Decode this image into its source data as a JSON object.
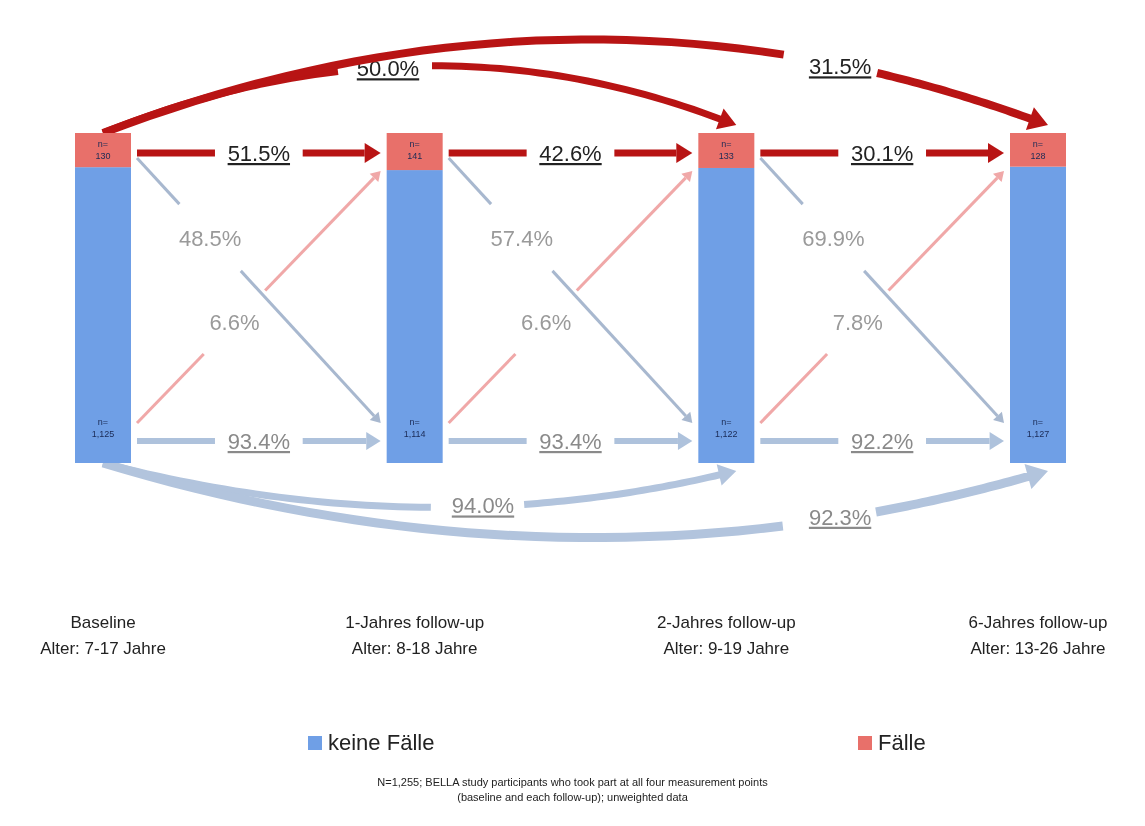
{
  "chart_data": {
    "type": "bar",
    "stacked": true,
    "categories": [
      "Baseline\nAlter: 7-17 Jahre",
      "1-Jahres follow-up\nAlter: 8-18 Jahre",
      "2-Jahres follow-up\nAlter: 9-19 Jahre",
      "6-Jahres follow-up\nAlter: 13-26 Jahre"
    ],
    "series": [
      {
        "name": "keine Fälle",
        "color": "#6f9fe6",
        "values": [
          1125,
          1114,
          1122,
          1127
        ],
        "value_labels": [
          "n=\n1,125",
          "n=\n1,114",
          "n=\n1,122",
          "n=\n1,127"
        ]
      },
      {
        "name": "Fälle",
        "color": "#e8706a",
        "values": [
          130,
          141,
          133,
          128
        ],
        "value_labels": [
          "n=\n130",
          "n=\n141",
          "n=\n133",
          "n=\n128"
        ]
      }
    ],
    "legend": "bottom",
    "annotations": [
      "51.5%",
      "42.6%",
      "30.1%",
      "48.5%",
      "57.4%",
      "69.9%",
      "6.6%",
      "6.6%",
      "7.8%",
      "93.4%",
      "93.4%",
      "92.2%",
      "50.0%",
      "31.5%",
      "94.0%",
      "92.3%",
      "N=1,255; BELLA study participants who took part at all four measurement points\n(baseline and each follow-up); unweighted data"
    ]
  }
}
